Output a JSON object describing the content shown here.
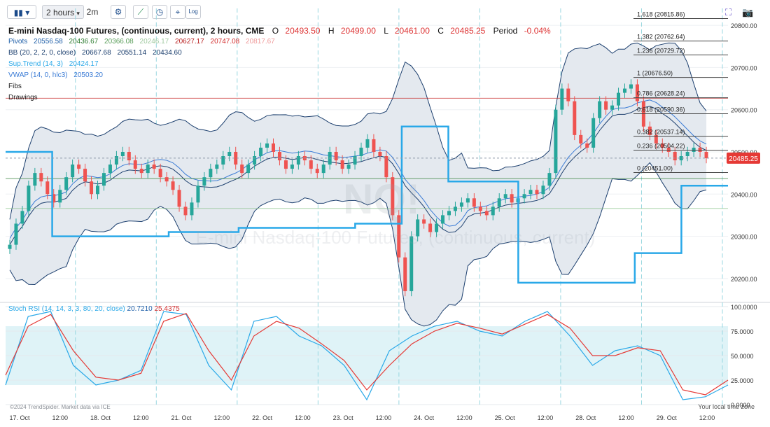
{
  "toolbar": {
    "interval": "2 hours",
    "range": "2m",
    "log_label": "Log"
  },
  "header": {
    "symbol": "E-mini Nasdaq-100 Futures, (continuous, current), 2 hours, CME",
    "o_label": "O",
    "o": "20493.50",
    "h_label": "H",
    "h": "20499.00",
    "l_label": "L",
    "l": "20461.00",
    "c_label": "C",
    "c": "20485.25",
    "period_label": "Period",
    "period": "-0.04%"
  },
  "indicators": {
    "pivots": {
      "label": "Pivots",
      "v1": "20556.58",
      "v2": "20436.67",
      "v3": "20366.08",
      "v4": "20246.17",
      "v5": "20627.17",
      "v6": "20747.08",
      "v7": "20817.67"
    },
    "bb": {
      "label": "BB (20, 2, 2, 0, close)",
      "v1": "20667.68",
      "v2": "20551.14",
      "v3": "20434.60"
    },
    "supertrend": {
      "label": "Sup.Trend (14, 3)",
      "v1": "20424.17"
    },
    "vwap": {
      "label": "VWAP (14, 0, hlc3)",
      "v1": "20503.20"
    },
    "fibs": {
      "label": "Fibs"
    },
    "drawings": {
      "label": "Drawings"
    }
  },
  "price_axis": {
    "ticks": [
      "20800.00",
      "20700.00",
      "20600.00",
      "20500.00",
      "20400.00",
      "20300.00",
      "20200.00"
    ],
    "current": "20485.25"
  },
  "fib_levels": [
    {
      "label": "1.618 (20815.86)",
      "value": 20815.86
    },
    {
      "label": "1.382 (20762.64)",
      "value": 20762.64
    },
    {
      "label": "1.236 (20729.72)",
      "value": 20729.72
    },
    {
      "label": "1 (20676.50)",
      "value": 20676.5
    },
    {
      "label": "0.786 (20628.24)",
      "value": 20628.24
    },
    {
      "label": "0.618 (20590.36)",
      "value": 20590.36
    },
    {
      "label": "0.382 (20537.14)",
      "value": 20537.14
    },
    {
      "label": "0.236 (20504.22)",
      "value": 20504.22
    },
    {
      "label": "0 (20451.00)",
      "value": 20451.0
    }
  ],
  "stoch": {
    "label": "Stoch RSI (14, 14, 3, 3, 80, 20, close)",
    "k": "20.7210",
    "d": "25.4375",
    "ticks": [
      "100.0000",
      "75.0000",
      "50.0000",
      "25.0000",
      "0.0000"
    ]
  },
  "x_axis": {
    "labels": [
      "17. Oct",
      "12:00",
      "18. Oct",
      "12:00",
      "21. Oct",
      "12:00",
      "22. Oct",
      "12:00",
      "23. Oct",
      "12:00",
      "24. Oct",
      "12:00",
      "25. Oct",
      "12:00",
      "28. Oct",
      "12:00",
      "29. Oct",
      "12:00"
    ]
  },
  "watermark": "NQ!",
  "watermark_sub": "E-mini Nasdaq-100 Futures, (continuous, current)",
  "copyright": "©2024 TrendSpider. Market data via ICE",
  "timezone_note": "Your local time zone",
  "colors": {
    "up": "#26a69a",
    "down": "#ef5350",
    "bb": "#1c3f6e",
    "supertrend": "#29a8e8",
    "vwap": "#3a7bd5",
    "stoch_k": "#29a8e8",
    "stoch_d": "#e53935",
    "pivot_r": "#c62828",
    "pivot_s": "#2e7d32",
    "current": "#e53935"
  },
  "chart_data": {
    "type": "candlestick",
    "x_labels": [
      "17. Oct",
      "12:00",
      "18. Oct",
      "12:00",
      "21. Oct",
      "12:00",
      "22. Oct",
      "12:00",
      "23. Oct",
      "12:00",
      "24. Oct",
      "12:00",
      "25. Oct",
      "12:00",
      "28. Oct",
      "12:00",
      "29. Oct",
      "12:00"
    ],
    "y_range": [
      20150,
      20840
    ],
    "close_series": [
      20280,
      20330,
      20360,
      20420,
      20450,
      20430,
      20400,
      20380,
      20410,
      20440,
      20470,
      20460,
      20430,
      20400,
      20420,
      20450,
      20470,
      20490,
      20500,
      20480,
      20460,
      20450,
      20470,
      20460,
      20440,
      20430,
      20410,
      20370,
      20350,
      20380,
      20420,
      20440,
      20460,
      20470,
      20490,
      20500,
      20470,
      20450,
      20470,
      20490,
      20510,
      20520,
      20500,
      20480,
      20460,
      20470,
      20490,
      20480,
      20460,
      20450,
      20470,
      20500,
      20480,
      20460,
      20470,
      20490,
      20510,
      20530,
      20500,
      20490,
      20440,
      20350,
      20250,
      20170,
      20300,
      20340,
      20330,
      20310,
      20330,
      20350,
      20360,
      20370,
      20380,
      20390,
      20370,
      20360,
      20350,
      20370,
      20390,
      20400,
      20380,
      20390,
      20400,
      20410,
      20400,
      20420,
      20450,
      20600,
      20650,
      20620,
      20540,
      20520,
      20510,
      20580,
      20620,
      20600,
      20610,
      20640,
      20650,
      20660,
      20620,
      20560,
      20540,
      20520,
      20510,
      20500,
      20480,
      20490,
      20500,
      20510,
      20500,
      20485
    ],
    "series": [
      {
        "name": "Sup.Trend",
        "values": [
          20500,
          20500,
          20300,
          20300,
          20300,
          20300,
          20300,
          20310,
          20310,
          20310,
          20320,
          20320,
          20320,
          20320,
          20320,
          20330,
          20330,
          20560,
          20560,
          20430,
          20430,
          20430,
          20190,
          20190,
          20190,
          20190,
          20190,
          20260,
          20260,
          20420,
          20420,
          20420
        ]
      },
      {
        "name": "Stoch RSI %K",
        "values": [
          20,
          90,
          95,
          40,
          20,
          25,
          35,
          95,
          92,
          40,
          15,
          85,
          90,
          70,
          60,
          40,
          5,
          55,
          70,
          80,
          85,
          75,
          70,
          85,
          95,
          70,
          40,
          55,
          60,
          50,
          5,
          8,
          20
        ]
      },
      {
        "name": "Stoch RSI %D",
        "values": [
          30,
          80,
          92,
          55,
          28,
          25,
          32,
          85,
          93,
          55,
          25,
          70,
          85,
          78,
          62,
          45,
          15,
          40,
          62,
          75,
          83,
          78,
          72,
          82,
          92,
          78,
          50,
          50,
          58,
          55,
          15,
          10,
          25
        ]
      }
    ]
  }
}
